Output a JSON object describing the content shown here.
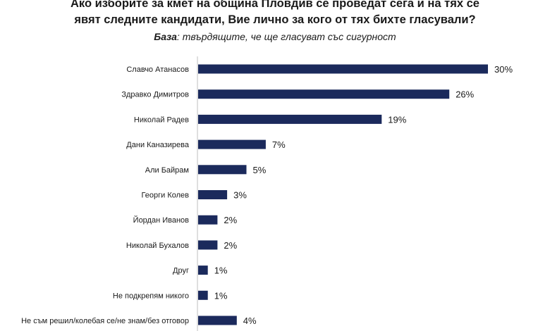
{
  "chart_data": {
    "type": "bar",
    "orientation": "horizontal",
    "title_line1": "Ако изборите за кмет на община Пловдив се проведат сега и на тях се",
    "title_line2": "явят следните кандидати, Вие лично за кого от тях бихте гласували?",
    "subtitle_label": "База",
    "subtitle_text": ": твърдящите, че ще гласуват със сигурност",
    "categories": [
      "Славчо Атанасов",
      "Здравко Димитров",
      "Николай Радев",
      "Дани Каназирева",
      "Али Байрам",
      "Георги Колев",
      "Йордан Иванов",
      "Николай Бухалов",
      "Друг",
      "Не подкрепям никого",
      "Не съм решил/колебая се/не знам/без отговор"
    ],
    "values": [
      30,
      26,
      19,
      7,
      5,
      3,
      2,
      2,
      1,
      1,
      4
    ],
    "value_labels": [
      "30%",
      "26%",
      "19%",
      "7%",
      "5%",
      "3%",
      "2%",
      "2%",
      "1%",
      "1%",
      "4%"
    ],
    "unit": "%",
    "bar_color": "#1b2a5c",
    "grid": false,
    "legend": "none"
  }
}
